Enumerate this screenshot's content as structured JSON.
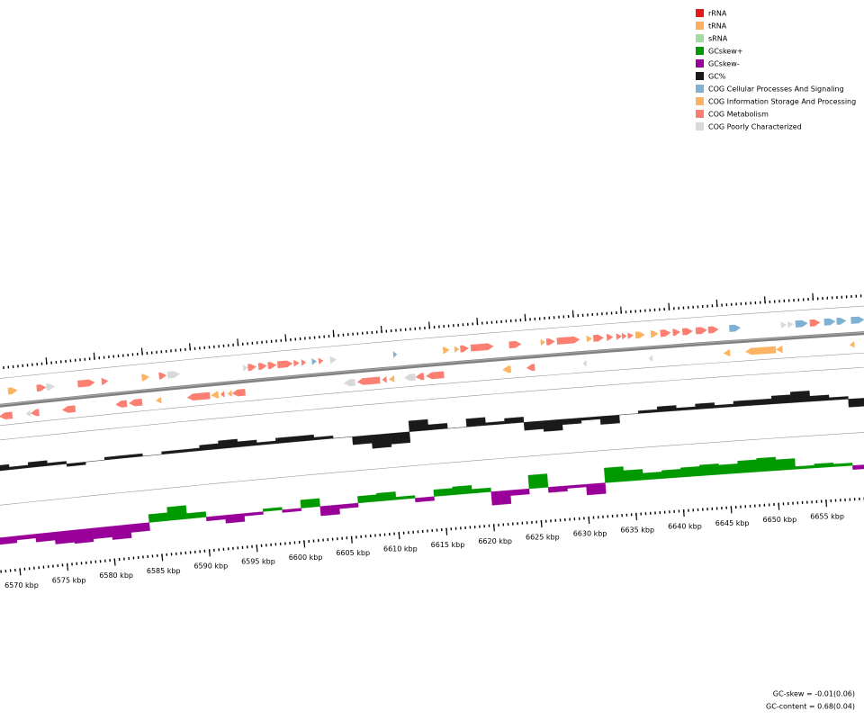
{
  "legend": [
    {
      "name": "rRNA",
      "color": "#e31a1c"
    },
    {
      "name": "tRNA",
      "color": "#fdae61"
    },
    {
      "name": "sRNA",
      "color": "#a6dba0"
    },
    {
      "name": "GCskew+",
      "color": "#009900"
    },
    {
      "name": "GCskew-",
      "color": "#990099"
    },
    {
      "name": "GC%",
      "color": "#1a1a1a"
    },
    {
      "name": "COG Cellular Processes And Signaling",
      "color": "#80b1d3"
    },
    {
      "name": "COG Information Storage And Processing",
      "color": "#fdb462"
    },
    {
      "name": "COG Metabolism",
      "color": "#fb8072"
    },
    {
      "name": "COG Poorly Characterized",
      "color": "#d9d9d9"
    }
  ],
  "ruler": {
    "ticks": [
      {
        "value": 6570,
        "label": "6570 kbp"
      },
      {
        "value": 6575,
        "label": "6575 kbp"
      },
      {
        "value": 6580,
        "label": "6580 kbp"
      },
      {
        "value": 6585,
        "label": "6585 kbp"
      },
      {
        "value": 6590,
        "label": "6590 kbp"
      },
      {
        "value": 6595,
        "label": "6595 kbp"
      },
      {
        "value": 6600,
        "label": "6600 kbp"
      },
      {
        "value": 6605,
        "label": "6605 kbp"
      },
      {
        "value": 6610,
        "label": "6610 kbp"
      },
      {
        "value": 6615,
        "label": "6615 kbp"
      },
      {
        "value": 6620,
        "label": "6620 kbp"
      },
      {
        "value": 6625,
        "label": "6625 kbp"
      },
      {
        "value": 6630,
        "label": "6630 kbp"
      },
      {
        "value": 6635,
        "label": "6635 kbp"
      },
      {
        "value": 6640,
        "label": "6640 kbp"
      },
      {
        "value": 6645,
        "label": "6645 kbp"
      },
      {
        "value": 6650,
        "label": "6650 kbp"
      },
      {
        "value": 6655,
        "label": "6655 kbp"
      }
    ]
  },
  "features": [
    {
      "start": 6570.7,
      "end": 6571.7,
      "strand": 1,
      "category": 7
    },
    {
      "start": 6573.7,
      "end": 6574.7,
      "strand": 1,
      "category": 8
    },
    {
      "start": 6574.7,
      "end": 6575.6,
      "strand": 1,
      "category": 9
    },
    {
      "start": 6578.0,
      "end": 6579.8,
      "strand": 1,
      "category": 8
    },
    {
      "start": 6580.5,
      "end": 6581.2,
      "strand": 1,
      "category": 8
    },
    {
      "start": 6584.7,
      "end": 6585.5,
      "strand": 1,
      "category": 7
    },
    {
      "start": 6586.5,
      "end": 6587.3,
      "strand": 1,
      "category": 8
    },
    {
      "start": 6587.4,
      "end": 6588.7,
      "strand": 1,
      "category": 9
    },
    {
      "start": 6595.3,
      "end": 6595.8,
      "strand": 1,
      "category": 9
    },
    {
      "start": 6595.8,
      "end": 6596.7,
      "strand": 1,
      "category": 8
    },
    {
      "start": 6596.9,
      "end": 6597.8,
      "strand": 1,
      "category": 8
    },
    {
      "start": 6597.9,
      "end": 6598.8,
      "strand": 1,
      "category": 8
    },
    {
      "start": 6598.9,
      "end": 6600.5,
      "strand": 1,
      "category": 8
    },
    {
      "start": 6600.6,
      "end": 6601.2,
      "strand": 1,
      "category": 8
    },
    {
      "start": 6601.4,
      "end": 6601.9,
      "strand": 1,
      "category": 8
    },
    {
      "start": 6602.5,
      "end": 6603.0,
      "strand": 1,
      "category": 6
    },
    {
      "start": 6603.2,
      "end": 6603.7,
      "strand": 1,
      "category": 8
    },
    {
      "start": 6604.4,
      "end": 6605.1,
      "strand": 1,
      "category": 9
    },
    {
      "start": 6611.0,
      "end": 6611.4,
      "strand": 1,
      "category": 6
    },
    {
      "start": 6616.2,
      "end": 6616.9,
      "strand": 1,
      "category": 7
    },
    {
      "start": 6617.4,
      "end": 6617.9,
      "strand": 1,
      "category": 7
    },
    {
      "start": 6618.0,
      "end": 6618.9,
      "strand": 1,
      "category": 8
    },
    {
      "start": 6619.1,
      "end": 6621.5,
      "strand": 1,
      "category": 8
    },
    {
      "start": 6623.1,
      "end": 6624.4,
      "strand": 1,
      "category": 8
    },
    {
      "start": 6626.4,
      "end": 6626.9,
      "strand": 1,
      "category": 7
    },
    {
      "start": 6627.0,
      "end": 6627.9,
      "strand": 1,
      "category": 8
    },
    {
      "start": 6628.1,
      "end": 6630.5,
      "strand": 1,
      "category": 8
    },
    {
      "start": 6631.2,
      "end": 6631.8,
      "strand": 1,
      "category": 7
    },
    {
      "start": 6631.9,
      "end": 6633.0,
      "strand": 1,
      "category": 8
    },
    {
      "start": 6633.3,
      "end": 6634.0,
      "strand": 1,
      "category": 8
    },
    {
      "start": 6634.3,
      "end": 6634.9,
      "strand": 1,
      "category": 8
    },
    {
      "start": 6634.9,
      "end": 6635.4,
      "strand": 1,
      "category": 8
    },
    {
      "start": 6635.5,
      "end": 6636.1,
      "strand": 1,
      "category": 8
    },
    {
      "start": 6636.3,
      "end": 6637.3,
      "strand": 1,
      "category": 7
    },
    {
      "start": 6637.9,
      "end": 6638.7,
      "strand": 1,
      "category": 7
    },
    {
      "start": 6638.9,
      "end": 6640.0,
      "strand": 1,
      "category": 8
    },
    {
      "start": 6640.2,
      "end": 6641.0,
      "strand": 1,
      "category": 8
    },
    {
      "start": 6641.2,
      "end": 6642.3,
      "strand": 1,
      "category": 8
    },
    {
      "start": 6642.6,
      "end": 6643.8,
      "strand": 1,
      "category": 8
    },
    {
      "start": 6643.9,
      "end": 6645.0,
      "strand": 1,
      "category": 8
    },
    {
      "start": 6646.1,
      "end": 6647.3,
      "strand": 1,
      "category": 6
    },
    {
      "start": 6651.5,
      "end": 6652.1,
      "strand": 1,
      "category": 9
    },
    {
      "start": 6652.2,
      "end": 6652.8,
      "strand": 1,
      "category": 9
    },
    {
      "start": 6653.0,
      "end": 6654.3,
      "strand": 1,
      "category": 6
    },
    {
      "start": 6654.5,
      "end": 6655.6,
      "strand": 1,
      "category": 8
    },
    {
      "start": 6656.0,
      "end": 6657.2,
      "strand": 1,
      "category": 6
    },
    {
      "start": 6657.3,
      "end": 6658.3,
      "strand": 1,
      "category": 6
    },
    {
      "start": 6658.8,
      "end": 6660.2,
      "strand": 1,
      "category": 6
    },
    {
      "start": 6569.5,
      "end": 6570.9,
      "strand": -1,
      "category": 8
    },
    {
      "start": 6572.3,
      "end": 6572.8,
      "strand": -1,
      "category": 9
    },
    {
      "start": 6572.8,
      "end": 6573.7,
      "strand": -1,
      "category": 8
    },
    {
      "start": 6576.1,
      "end": 6577.5,
      "strand": -1,
      "category": 8
    },
    {
      "start": 6581.7,
      "end": 6582.9,
      "strand": -1,
      "category": 8
    },
    {
      "start": 6583.1,
      "end": 6584.5,
      "strand": -1,
      "category": 8
    },
    {
      "start": 6585.9,
      "end": 6586.5,
      "strand": -1,
      "category": 7
    },
    {
      "start": 6589.2,
      "end": 6591.6,
      "strand": -1,
      "category": 8
    },
    {
      "start": 6591.7,
      "end": 6592.5,
      "strand": -1,
      "category": 7
    },
    {
      "start": 6592.7,
      "end": 6593.1,
      "strand": -1,
      "category": 8
    },
    {
      "start": 6593.4,
      "end": 6593.9,
      "strand": -1,
      "category": 7
    },
    {
      "start": 6593.9,
      "end": 6595.3,
      "strand": -1,
      "category": 8
    },
    {
      "start": 6605.6,
      "end": 6606.8,
      "strand": -1,
      "category": 9
    },
    {
      "start": 6607.0,
      "end": 6609.4,
      "strand": -1,
      "category": 8
    },
    {
      "start": 6609.6,
      "end": 6610.1,
      "strand": -1,
      "category": 8
    },
    {
      "start": 6610.3,
      "end": 6610.9,
      "strand": -1,
      "category": 7
    },
    {
      "start": 6611.9,
      "end": 6613.1,
      "strand": -1,
      "category": 9
    },
    {
      "start": 6613.1,
      "end": 6614.0,
      "strand": -1,
      "category": 8
    },
    {
      "start": 6614.2,
      "end": 6616.1,
      "strand": -1,
      "category": 8
    },
    {
      "start": 6622.2,
      "end": 6623.1,
      "strand": -1,
      "category": 7
    },
    {
      "start": 6624.7,
      "end": 6625.6,
      "strand": -1,
      "category": 8
    },
    {
      "start": 6630.6,
      "end": 6631.0,
      "strand": -1,
      "category": 9
    },
    {
      "start": 6637.5,
      "end": 6637.9,
      "strand": -1,
      "category": 9
    },
    {
      "start": 6645.3,
      "end": 6646.0,
      "strand": -1,
      "category": 7
    },
    {
      "start": 6647.6,
      "end": 6650.8,
      "strand": -1,
      "category": 7
    },
    {
      "start": 6650.8,
      "end": 6651.5,
      "strand": -1,
      "category": 7
    },
    {
      "start": 6658.5,
      "end": 6659.0,
      "strand": -1,
      "category": 7
    }
  ],
  "gc_content": {
    "color": "#1a1a1a",
    "x": [
      6566,
      6568,
      6570,
      6572,
      6574,
      6576,
      6578,
      6580,
      6582,
      6584,
      6586,
      6588,
      6590,
      6592,
      6594,
      6596,
      6598,
      6600,
      6602,
      6604,
      6606,
      6608,
      6610,
      6612,
      6614,
      6616,
      6618,
      6620,
      6622,
      6624,
      6626,
      6628,
      6630,
      6632,
      6634,
      6636,
      6638,
      6640,
      6642,
      6644,
      6646,
      6648,
      6650,
      6652,
      6654,
      6656,
      6658,
      6660
    ],
    "values": [
      0.01,
      0.02,
      0.01,
      0.02,
      0.01,
      -0.01,
      0.0,
      0.01,
      0.01,
      0.0,
      0.01,
      0.01,
      0.02,
      0.03,
      0.02,
      0.01,
      0.02,
      0.02,
      0.01,
      0.0,
      -0.03,
      -0.05,
      -0.04,
      0.04,
      0.02,
      0.0,
      0.03,
      0.01,
      0.02,
      -0.03,
      -0.04,
      -0.02,
      -0.01,
      -0.03,
      0.0,
      0.01,
      0.02,
      0.01,
      0.02,
      0.01,
      0.02,
      0.02,
      0.03,
      0.04,
      0.02,
      0.01,
      -0.03,
      -0.02
    ]
  },
  "gc_skew": {
    "colors": {
      "positive": "#009900",
      "negative": "#990099"
    },
    "x": [
      6566,
      6568,
      6570,
      6572,
      6574,
      6576,
      6578,
      6580,
      6582,
      6584,
      6586,
      6588,
      6590,
      6592,
      6594,
      6596,
      6598,
      6600,
      6602,
      6604,
      6606,
      6608,
      6610,
      6612,
      6614,
      6616,
      6618,
      6620,
      6622,
      6624,
      6626,
      6628,
      6630,
      6632,
      6634,
      6636,
      6638,
      6640,
      6642,
      6644,
      6646,
      6648,
      6650,
      6652,
      6654,
      6656,
      6658,
      6660
    ],
    "values": [
      -0.08,
      -0.05,
      -0.03,
      -0.06,
      -0.09,
      -0.1,
      -0.08,
      -0.1,
      -0.06,
      0.06,
      0.1,
      0.04,
      -0.03,
      -0.06,
      -0.02,
      0.02,
      -0.02,
      0.06,
      -0.07,
      -0.03,
      0.05,
      0.06,
      0.02,
      -0.03,
      0.05,
      0.06,
      0.03,
      -0.1,
      -0.04,
      0.1,
      -0.04,
      -0.02,
      -0.08,
      0.11,
      0.08,
      0.05,
      0.06,
      0.07,
      0.08,
      0.07,
      0.09,
      0.1,
      0.08,
      0.02,
      0.03,
      0.02,
      -0.03,
      -0.06
    ]
  },
  "footer": {
    "gc_skew": "GC-skew = -0.01(0.06)",
    "gc_content": "GC-content = 0.68(0.04)"
  }
}
